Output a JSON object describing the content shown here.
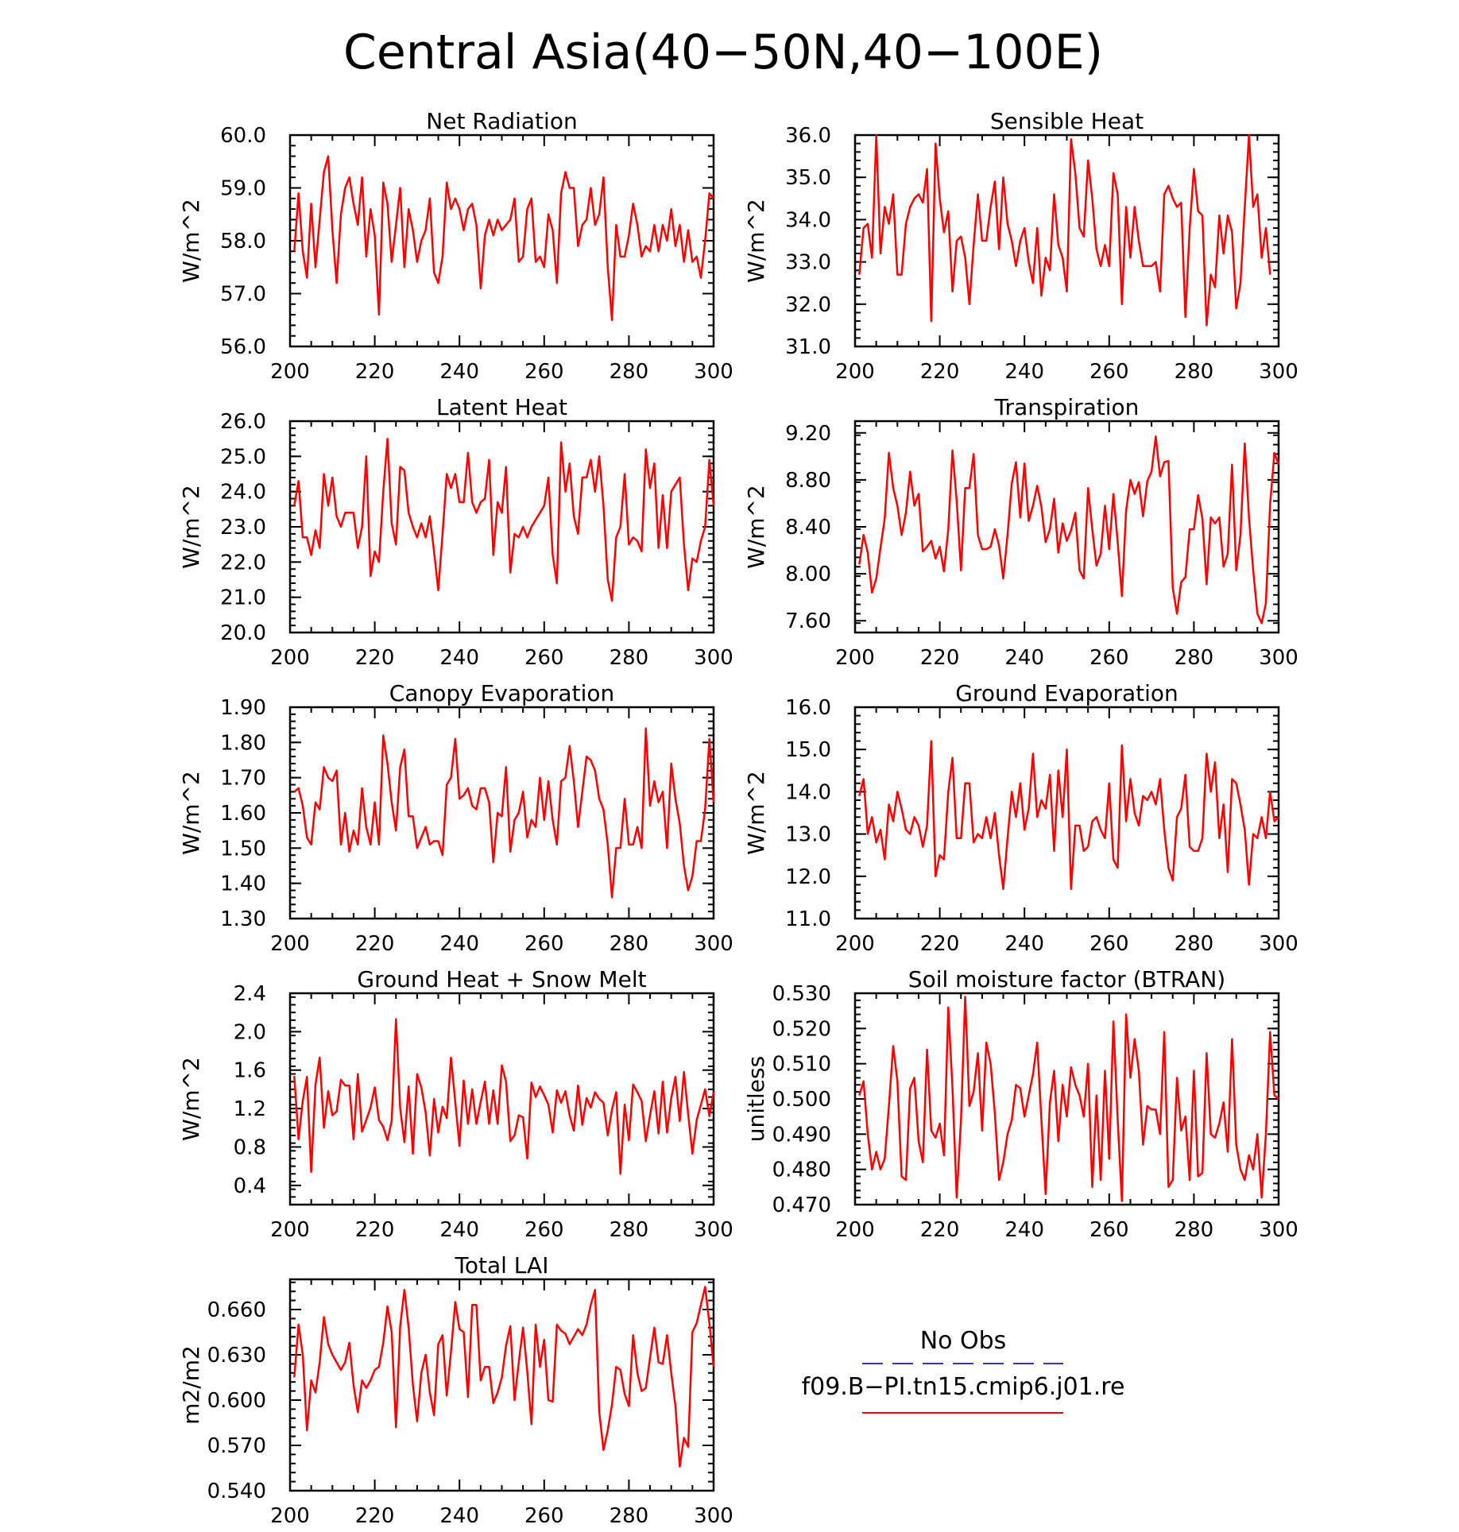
{
  "figure": {
    "title": "Central Asia(40−50N,40−100E)",
    "series_color": "#ff0000",
    "obs_color": "#3333cc"
  },
  "legend": {
    "obs_label": "No Obs",
    "model_label": "f09.B−PI.tn15.cmip6.j01.re"
  },
  "chart_data": [
    {
      "type": "line",
      "title": "Net Radiation",
      "ylabel": "W/m^2",
      "xlim": [
        200,
        300
      ],
      "ylim": [
        56.0,
        60.0
      ],
      "xticks": [
        200,
        220,
        240,
        260,
        280,
        300
      ],
      "yticks": [
        "56.0",
        "57.0",
        "58.0",
        "59.0",
        "60.0"
      ],
      "x_start": 201,
      "values": [
        57.8,
        58.9,
        57.8,
        57.3,
        58.7,
        57.5,
        58.4,
        59.3,
        59.6,
        58.2,
        57.2,
        58.5,
        59.0,
        59.2,
        58.7,
        58.3,
        59.2,
        57.7,
        58.6,
        58.1,
        56.6,
        59.1,
        58.7,
        57.6,
        58.3,
        59.0,
        57.5,
        58.6,
        58.2,
        57.6,
        58.0,
        58.2,
        58.8,
        57.4,
        57.2,
        57.7,
        59.1,
        58.6,
        58.8,
        58.6,
        58.2,
        58.6,
        58.7,
        58.3,
        57.1,
        58.1,
        58.4,
        58.1,
        58.4,
        58.2,
        58.3,
        58.4,
        58.8,
        57.6,
        57.7,
        58.6,
        58.8,
        57.6,
        57.7,
        57.5,
        58.5,
        58.2,
        57.2,
        58.9,
        59.3,
        59.0,
        59.0,
        57.9,
        58.3,
        58.4,
        59.0,
        58.3,
        58.5,
        59.2,
        57.5,
        56.5,
        58.3,
        57.7,
        57.7,
        58.1,
        58.7,
        58.3,
        57.7,
        57.9,
        57.8,
        58.3,
        57.8,
        58.3,
        58.0,
        58.6,
        57.9,
        58.3,
        57.6,
        58.2,
        57.6,
        57.7,
        57.3,
        58.0,
        58.9,
        58.8
      ]
    },
    {
      "type": "line",
      "title": "Sensible Heat",
      "ylabel": "W/m^2",
      "xlim": [
        200,
        300
      ],
      "ylim": [
        31.0,
        36.0
      ],
      "xticks": [
        200,
        220,
        240,
        260,
        280,
        300
      ],
      "yticks": [
        "31.0",
        "32.0",
        "33.0",
        "34.0",
        "35.0",
        "36.0"
      ],
      "x_start": 201,
      "values": [
        32.7,
        33.8,
        33.9,
        33.1,
        36.0,
        33.2,
        34.3,
        33.9,
        34.6,
        32.7,
        32.7,
        33.9,
        34.3,
        34.5,
        34.6,
        34.4,
        35.2,
        31.6,
        35.8,
        34.5,
        33.7,
        34.2,
        32.3,
        33.5,
        33.6,
        33.1,
        32.0,
        33.4,
        34.6,
        33.5,
        33.5,
        34.3,
        34.9,
        33.3,
        35.0,
        33.9,
        33.5,
        32.9,
        33.5,
        33.8,
        33.0,
        32.5,
        33.8,
        32.2,
        33.1,
        32.8,
        34.6,
        33.4,
        33.1,
        32.3,
        35.9,
        35.1,
        33.8,
        33.6,
        35.4,
        34.5,
        33.3,
        32.9,
        33.4,
        32.9,
        35.1,
        34.6,
        32.0,
        34.3,
        33.1,
        34.3,
        33.5,
        32.9,
        32.9,
        32.9,
        33.0,
        32.3,
        34.6,
        34.8,
        34.5,
        34.3,
        34.4,
        31.7,
        33.8,
        35.2,
        34.2,
        34.1,
        31.5,
        32.7,
        32.4,
        34.1,
        33.2,
        34.1,
        33.7,
        31.9,
        32.5,
        34.3,
        36.0,
        34.3,
        34.6,
        33.1,
        33.8,
        32.7
      ]
    },
    {
      "type": "line",
      "title": "Latent Heat",
      "ylabel": "W/m^2",
      "xlim": [
        200,
        300
      ],
      "ylim": [
        20.0,
        26.0
      ],
      "xticks": [
        200,
        220,
        240,
        260,
        280,
        300
      ],
      "yticks": [
        "20.0",
        "21.0",
        "22.0",
        "23.0",
        "24.0",
        "25.0",
        "26.0"
      ],
      "x_start": 201,
      "values": [
        23.6,
        24.3,
        22.7,
        22.7,
        22.2,
        22.9,
        22.4,
        24.5,
        23.6,
        24.4,
        23.3,
        23.0,
        23.4,
        23.4,
        23.4,
        22.4,
        23.0,
        25.0,
        21.6,
        22.3,
        22.0,
        24.0,
        25.5,
        23.1,
        22.5,
        24.7,
        24.6,
        23.4,
        23.0,
        22.7,
        23.1,
        22.7,
        23.3,
        22.3,
        21.2,
        22.8,
        24.5,
        24.1,
        24.5,
        23.7,
        23.7,
        25.1,
        23.7,
        23.4,
        23.7,
        23.8,
        24.9,
        22.2,
        23.7,
        23.4,
        24.7,
        21.7,
        22.8,
        22.7,
        23.0,
        22.7,
        23.0,
        23.2,
        23.4,
        23.6,
        24.4,
        22.2,
        21.4,
        25.4,
        24.0,
        24.8,
        23.3,
        22.8,
        24.4,
        24.4,
        24.9,
        24.0,
        25.0,
        23.6,
        21.5,
        20.9,
        22.7,
        23.0,
        24.5,
        22.5,
        22.7,
        22.6,
        22.3,
        25.2,
        24.1,
        24.8,
        22.4,
        23.9,
        22.4,
        24.0,
        24.2,
        24.4,
        22.5,
        21.2,
        22.1,
        22.0,
        22.6,
        23.0,
        24.9,
        23.6
      ]
    },
    {
      "type": "line",
      "title": "Transpiration",
      "ylabel": "W/m^2",
      "xlim": [
        200,
        300
      ],
      "ylim": [
        7.5,
        9.3
      ],
      "xticks": [
        200,
        220,
        240,
        260,
        280,
        300
      ],
      "yticks": [
        "7.60",
        "8.00",
        "8.40",
        "8.80",
        "9.20"
      ],
      "x_start": 201,
      "values": [
        8.08,
        8.33,
        8.18,
        7.84,
        7.96,
        8.22,
        8.47,
        9.03,
        8.73,
        8.58,
        8.33,
        8.52,
        8.87,
        8.58,
        8.68,
        8.19,
        8.23,
        8.28,
        8.13,
        8.23,
        8.02,
        8.38,
        9.05,
        8.62,
        8.03,
        8.73,
        8.73,
        9.02,
        8.33,
        8.21,
        8.21,
        8.23,
        8.38,
        8.24,
        7.96,
        8.33,
        8.77,
        8.95,
        8.48,
        8.94,
        8.45,
        8.58,
        8.75,
        8.57,
        8.27,
        8.38,
        8.64,
        8.18,
        8.43,
        8.28,
        8.37,
        8.52,
        8.03,
        7.96,
        8.73,
        8.38,
        8.07,
        8.17,
        8.58,
        8.21,
        8.68,
        8.27,
        7.81,
        8.54,
        8.8,
        8.68,
        8.78,
        8.49,
        8.79,
        8.87,
        9.17,
        8.83,
        8.95,
        8.96,
        7.88,
        7.66,
        7.93,
        7.97,
        8.38,
        8.38,
        8.67,
        8.47,
        7.91,
        8.48,
        8.43,
        8.48,
        8.06,
        8.17,
        8.93,
        8.03,
        8.33,
        9.11,
        8.48,
        8.03,
        7.66,
        7.58,
        7.75,
        8.59,
        9.03,
        8.93
      ]
    },
    {
      "type": "line",
      "title": "Canopy Evaporation",
      "ylabel": "W/m^2",
      "xlim": [
        200,
        300
      ],
      "ylim": [
        1.3,
        1.9
      ],
      "xticks": [
        200,
        220,
        240,
        260,
        280,
        300
      ],
      "yticks": [
        "1.30",
        "1.40",
        "1.50",
        "1.60",
        "1.70",
        "1.80",
        "1.90"
      ],
      "x_start": 201,
      "values": [
        1.66,
        1.67,
        1.62,
        1.53,
        1.51,
        1.63,
        1.61,
        1.73,
        1.7,
        1.69,
        1.72,
        1.51,
        1.6,
        1.49,
        1.55,
        1.51,
        1.67,
        1.56,
        1.51,
        1.63,
        1.51,
        1.82,
        1.74,
        1.63,
        1.55,
        1.73,
        1.78,
        1.59,
        1.59,
        1.5,
        1.53,
        1.56,
        1.51,
        1.52,
        1.52,
        1.48,
        1.68,
        1.7,
        1.81,
        1.64,
        1.65,
        1.67,
        1.62,
        1.61,
        1.67,
        1.67,
        1.63,
        1.46,
        1.6,
        1.59,
        1.73,
        1.49,
        1.58,
        1.6,
        1.66,
        1.53,
        1.58,
        1.56,
        1.7,
        1.58,
        1.69,
        1.58,
        1.51,
        1.69,
        1.7,
        1.79,
        1.69,
        1.56,
        1.66,
        1.76,
        1.75,
        1.72,
        1.64,
        1.61,
        1.51,
        1.36,
        1.5,
        1.5,
        1.64,
        1.51,
        1.51,
        1.56,
        1.5,
        1.84,
        1.62,
        1.69,
        1.63,
        1.66,
        1.5,
        1.74,
        1.64,
        1.57,
        1.45,
        1.38,
        1.42,
        1.52,
        1.52,
        1.61,
        1.81,
        1.63
      ]
    },
    {
      "type": "line",
      "title": "Ground Evaporation",
      "ylabel": "W/m^2",
      "xlim": [
        200,
        300
      ],
      "ylim": [
        11.0,
        16.0
      ],
      "xticks": [
        200,
        220,
        240,
        260,
        280,
        300
      ],
      "yticks": [
        "11.0",
        "12.0",
        "13.0",
        "14.0",
        "15.0",
        "16.0"
      ],
      "x_start": 201,
      "values": [
        13.9,
        14.3,
        13.0,
        13.4,
        12.8,
        13.1,
        12.4,
        13.7,
        13.3,
        14.0,
        13.6,
        13.1,
        13.0,
        13.4,
        13.2,
        12.7,
        13.2,
        15.2,
        12.0,
        12.5,
        12.4,
        14.0,
        14.8,
        12.9,
        12.9,
        14.2,
        14.2,
        12.8,
        13.0,
        12.9,
        13.4,
        12.9,
        13.5,
        12.5,
        11.7,
        12.9,
        14.0,
        13.4,
        14.2,
        13.1,
        13.6,
        14.9,
        13.4,
        13.8,
        13.6,
        14.4,
        12.6,
        14.5,
        13.4,
        15.0,
        11.7,
        13.2,
        13.2,
        12.6,
        12.7,
        13.3,
        13.4,
        13.1,
        12.9,
        14.2,
        12.4,
        12.2,
        15.1,
        13.3,
        14.3,
        13.5,
        13.2,
        13.9,
        13.8,
        14.0,
        13.7,
        14.3,
        13.1,
        12.2,
        11.9,
        13.4,
        13.6,
        14.4,
        12.7,
        12.6,
        12.6,
        12.9,
        14.9,
        14.0,
        14.7,
        12.9,
        13.7,
        12.1,
        14.3,
        14.2,
        13.7,
        13.1,
        11.8,
        13.0,
        12.9,
        13.4,
        12.9,
        14.0,
        13.3,
        13.4
      ]
    },
    {
      "type": "line",
      "title": "Ground Heat + Snow Melt",
      "ylabel": "W/m^2",
      "xlim": [
        200,
        300
      ],
      "ylim": [
        0.2,
        2.4
      ],
      "xticks": [
        200,
        220,
        240,
        260,
        280,
        300
      ],
      "yticks": [
        "0.4",
        "0.8",
        "1.2",
        "1.6",
        "2.0",
        "2.4"
      ],
      "x_start": 201,
      "values": [
        1.54,
        0.88,
        1.28,
        1.53,
        0.54,
        1.45,
        1.73,
        1.0,
        1.38,
        1.13,
        1.17,
        1.5,
        1.44,
        1.44,
        0.88,
        1.56,
        0.96,
        1.08,
        1.21,
        1.42,
        1.08,
        1.01,
        0.87,
        1.07,
        2.13,
        1.2,
        0.85,
        1.43,
        0.73,
        1.56,
        1.42,
        1.16,
        0.71,
        1.3,
        0.95,
        1.22,
        1.1,
        1.73,
        1.27,
        0.81,
        1.49,
        1.04,
        1.4,
        1.04,
        1.27,
        1.48,
        1.04,
        1.39,
        1.04,
        1.65,
        1.48,
        0.86,
        0.92,
        1.13,
        1.11,
        0.68,
        1.47,
        1.32,
        1.43,
        1.34,
        1.24,
        0.95,
        1.39,
        1.26,
        1.38,
        1.13,
        0.97,
        1.44,
        1.03,
        1.31,
        1.21,
        1.37,
        1.3,
        1.26,
        0.92,
        1.19,
        1.37,
        0.52,
        1.24,
        0.87,
        1.45,
        1.37,
        1.28,
        0.86,
        1.13,
        1.38,
        0.94,
        1.48,
        0.95,
        1.31,
        1.53,
        1.07,
        1.58,
        1.14,
        0.73,
        1.08,
        1.24,
        1.4,
        1.12,
        1.37
      ]
    },
    {
      "type": "line",
      "title": "Soil moisture factor (BTRAN)",
      "ylabel": "unitless",
      "xlim": [
        200,
        300
      ],
      "ylim": [
        0.47,
        0.53
      ],
      "xticks": [
        200,
        220,
        240,
        260,
        280,
        300
      ],
      "yticks": [
        "0.470",
        "0.480",
        "0.490",
        "0.500",
        "0.510",
        "0.520",
        "0.530"
      ],
      "x_start": 201,
      "values": [
        0.501,
        0.505,
        0.49,
        0.48,
        0.485,
        0.48,
        0.483,
        0.498,
        0.515,
        0.505,
        0.478,
        0.477,
        0.503,
        0.506,
        0.488,
        0.482,
        0.514,
        0.491,
        0.489,
        0.493,
        0.484,
        0.526,
        0.503,
        0.472,
        0.494,
        0.529,
        0.498,
        0.502,
        0.513,
        0.491,
        0.516,
        0.51,
        0.496,
        0.477,
        0.482,
        0.49,
        0.494,
        0.504,
        0.503,
        0.495,
        0.501,
        0.507,
        0.516,
        0.494,
        0.473,
        0.499,
        0.508,
        0.488,
        0.504,
        0.495,
        0.509,
        0.504,
        0.501,
        0.495,
        0.51,
        0.475,
        0.501,
        0.477,
        0.508,
        0.483,
        0.522,
        0.494,
        0.471,
        0.524,
        0.506,
        0.517,
        0.508,
        0.487,
        0.498,
        0.497,
        0.497,
        0.49,
        0.519,
        0.475,
        0.477,
        0.506,
        0.491,
        0.495,
        0.477,
        0.508,
        0.478,
        0.479,
        0.513,
        0.49,
        0.489,
        0.493,
        0.499,
        0.485,
        0.517,
        0.487,
        0.48,
        0.477,
        0.484,
        0.48,
        0.49,
        0.472,
        0.49,
        0.519,
        0.501,
        0.5
      ]
    },
    {
      "type": "line",
      "title": "Total LAI",
      "ylabel": "m2/m2",
      "xlim": [
        200,
        300
      ],
      "ylim": [
        0.54,
        0.68
      ],
      "xticks": [
        200,
        220,
        240,
        260,
        280,
        300
      ],
      "yticks": [
        "0.540",
        "0.570",
        "0.600",
        "0.630",
        "0.660"
      ],
      "x_start": 201,
      "values": [
        0.615,
        0.65,
        0.63,
        0.58,
        0.613,
        0.605,
        0.625,
        0.655,
        0.637,
        0.63,
        0.625,
        0.62,
        0.625,
        0.638,
        0.61,
        0.592,
        0.613,
        0.608,
        0.613,
        0.62,
        0.622,
        0.638,
        0.662,
        0.645,
        0.582,
        0.649,
        0.673,
        0.648,
        0.61,
        0.586,
        0.618,
        0.63,
        0.605,
        0.59,
        0.637,
        0.643,
        0.603,
        0.632,
        0.665,
        0.647,
        0.645,
        0.602,
        0.663,
        0.663,
        0.613,
        0.622,
        0.622,
        0.598,
        0.605,
        0.615,
        0.636,
        0.649,
        0.6,
        0.625,
        0.648,
        0.619,
        0.584,
        0.65,
        0.622,
        0.64,
        0.6,
        0.599,
        0.65,
        0.646,
        0.644,
        0.637,
        0.642,
        0.647,
        0.643,
        0.65,
        0.663,
        0.673,
        0.592,
        0.567,
        0.58,
        0.597,
        0.622,
        0.62,
        0.604,
        0.596,
        0.643,
        0.618,
        0.606,
        0.608,
        0.628,
        0.648,
        0.625,
        0.624,
        0.643,
        0.618,
        0.596,
        0.556,
        0.575,
        0.569,
        0.645,
        0.651,
        0.663,
        0.675,
        0.651,
        0.622
      ]
    }
  ]
}
